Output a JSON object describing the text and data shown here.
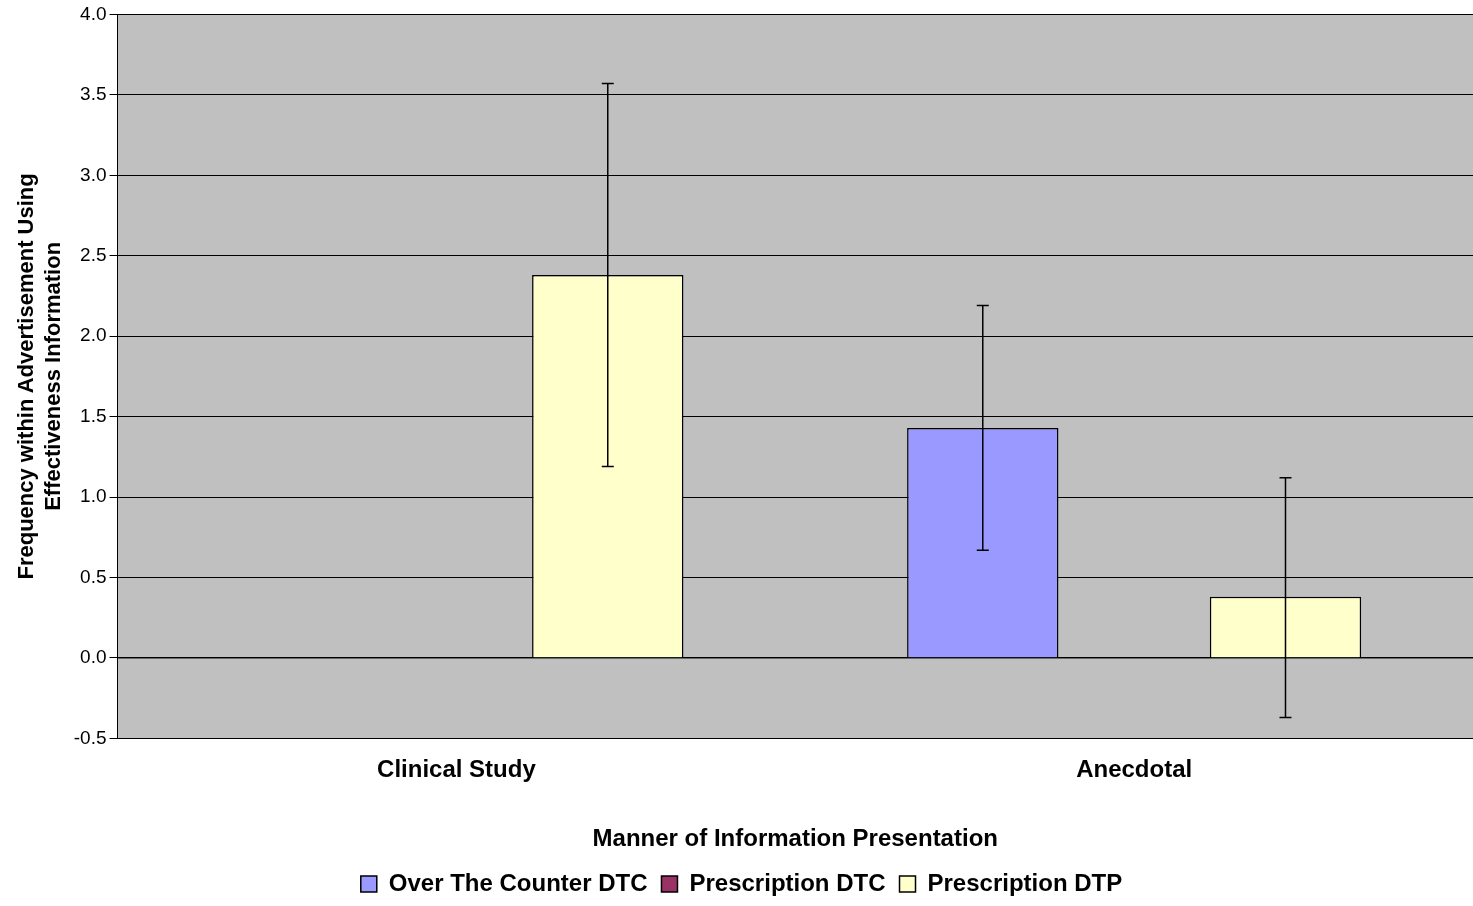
{
  "chart_data": {
    "type": "bar",
    "xlabel": "Manner of Information Presentation",
    "ylabel": "Frequency within Advertisement Using Effectiveness Information",
    "categories": [
      "Clinical Study",
      "Anecdotal"
    ],
    "series": [
      {
        "name": "Over The Counter DTC",
        "color": "#9999ff",
        "values": [
          0,
          1.43
        ],
        "errors": [
          null,
          [
            0.67,
            2.19
          ]
        ]
      },
      {
        "name": "Prescription DTC",
        "color": "#993366",
        "values": [
          0,
          0
        ],
        "errors": [
          null,
          null
        ]
      },
      {
        "name": "Prescription DTP",
        "color": "#ffffcc",
        "values": [
          2.38,
          0.38
        ],
        "errors": [
          [
            1.19,
            3.57
          ],
          [
            -0.37,
            1.12
          ]
        ]
      }
    ],
    "ylim": [
      -0.5,
      4
    ],
    "yticks": [
      {
        "value": -0.5,
        "label": "-0.5"
      },
      {
        "value": 0,
        "label": "0.0"
      },
      {
        "value": 0.5,
        "label": "0.5"
      },
      {
        "value": 1,
        "label": "1.0"
      },
      {
        "value": 1.5,
        "label": "1.5"
      },
      {
        "value": 2,
        "label": "2.0"
      },
      {
        "value": 2.5,
        "label": "2.5"
      },
      {
        "value": 3,
        "label": "3.0"
      },
      {
        "value": 3.5,
        "label": "3.5"
      },
      {
        "value": 4,
        "label": "4.0"
      }
    ],
    "grid": "y",
    "legend": "bottom"
  }
}
